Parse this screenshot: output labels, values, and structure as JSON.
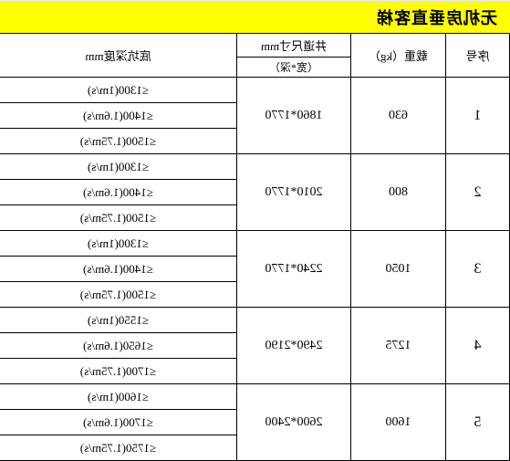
{
  "title": "无机房垂直客梯",
  "headers": {
    "seq": "序号",
    "load": "载重（kg）",
    "shaft_top": "井道尺寸mm",
    "shaft_sub": "（宽*深）",
    "pit": "底坑深度mm"
  },
  "rows": [
    {
      "seq": "1",
      "load": "630",
      "shaft": "1860*1770",
      "pits": [
        "≤1300(1m/s)",
        "≤1400(1.6m/s)",
        "≤1500(1.75m/s)"
      ]
    },
    {
      "seq": "2",
      "load": "800",
      "shaft": "2010*1770",
      "pits": [
        "≤1300(1m/s)",
        "≤1400(1.6m/s)",
        "≤1500(1.75m/s)"
      ]
    },
    {
      "seq": "3",
      "load": "1050",
      "shaft": "2240*1770",
      "pits": [
        "≤1300(1m/s)",
        "≤1400(1.6m/s)",
        "≤1500(1.75m/s)"
      ]
    },
    {
      "seq": "4",
      "load": "1275",
      "shaft": "2490*2190",
      "pits": [
        "≤1550(1m/s)",
        "≤1650(1.6m/s)",
        "≤1700(1.75m/s)"
      ]
    },
    {
      "seq": "5",
      "load": "1600",
      "shaft": "2600*2400",
      "pits": [
        "≤1600(1m/s)",
        "≤1700(1.6m/s)",
        "≤1750(1.75m/s)"
      ]
    }
  ],
  "colors": {
    "title_bg": "#ffff00",
    "border": "#000000",
    "text": "#000000",
    "page_bg": "#ffffff"
  },
  "fonts": {
    "title_size": 18,
    "header_size": 13,
    "cell_size": 13
  }
}
